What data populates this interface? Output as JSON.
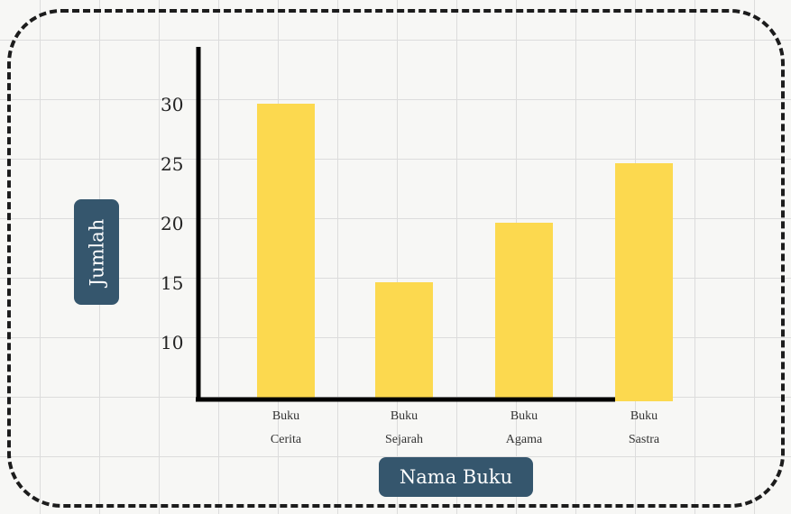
{
  "chart_data": {
    "type": "bar",
    "categories": [
      "Buku Cerita",
      "Buku Sejarah",
      "Buku Agama",
      "Buku Sastra"
    ],
    "category_lines": [
      [
        "Buku",
        "Cerita"
      ],
      [
        "Buku",
        "Sejarah"
      ],
      [
        "Buku",
        "Agama"
      ],
      [
        "Buku",
        "Sastra"
      ]
    ],
    "values": [
      30,
      15,
      20,
      25
    ],
    "xlabel": "Nama Buku",
    "ylabel": "Jumlah",
    "yticks": [
      10,
      15,
      20,
      25,
      30
    ],
    "ylim": [
      5,
      35
    ],
    "grid": true,
    "bar_color": "#fcd94f",
    "axis_color": "#000000",
    "label_bg_color": "#35566d"
  }
}
